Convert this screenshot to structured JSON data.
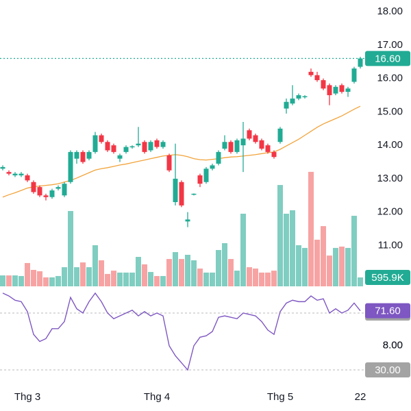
{
  "chart_data": {
    "type": "candlestick",
    "categories": [
      null,
      null,
      null,
      null,
      "Thg 3",
      null,
      null,
      null,
      null,
      null,
      null,
      null,
      null,
      null,
      null,
      null,
      null,
      null,
      null,
      null,
      null,
      null,
      null,
      null,
      null,
      "Thg 4",
      null,
      null,
      null,
      null,
      null,
      null,
      null,
      null,
      null,
      null,
      null,
      null,
      null,
      null,
      null,
      null,
      null,
      null,
      null,
      "Thg 5",
      null,
      null,
      null,
      null,
      null,
      null,
      null,
      null,
      null,
      null,
      null,
      null,
      "22"
    ],
    "open": [
      13.3,
      13.2,
      13.1,
      13.1,
      13.1,
      12.9,
      12.75,
      12.5,
      12.45,
      12.7,
      12.5,
      12.9,
      13.6,
      13.8,
      13.6,
      13.8,
      14.3,
      14.1,
      14.0,
      13.6,
      13.8,
      13.95,
      14.0,
      14.1,
      13.85,
      14.15,
      13.95,
      13.7,
      12.3,
      12.9,
      11.72,
      12.53,
      13.1,
      12.9,
      13.3,
      13.45,
      13.9,
      14.1,
      13.8,
      14.0,
      14.45,
      14.3,
      14.15,
      14.0,
      13.8,
      14.1,
      15.1,
      15.25,
      15.4,
      15.45,
      16.2,
      16.1,
      15.95,
      15.8,
      15.55,
      15.8,
      15.6,
      15.9,
      16.35
    ],
    "high": [
      13.4,
      13.25,
      13.2,
      13.2,
      13.15,
      12.95,
      12.8,
      12.55,
      12.7,
      12.8,
      12.9,
      13.85,
      13.85,
      13.85,
      13.85,
      14.4,
      14.35,
      14.15,
      14.05,
      13.75,
      14.0,
      14.0,
      14.55,
      14.15,
      14.15,
      14.2,
      14.15,
      13.75,
      14.05,
      12.95,
      12.0,
      12.56,
      13.15,
      13.35,
      13.45,
      13.85,
      14.3,
      14.15,
      14.2,
      14.7,
      14.5,
      14.35,
      14.2,
      14.05,
      13.85,
      14.55,
      15.4,
      15.8,
      15.55,
      15.5,
      16.3,
      16.2,
      16.0,
      15.85,
      15.8,
      15.85,
      15.75,
      16.35,
      16.65
    ],
    "low": [
      13.25,
      13.1,
      13.05,
      13.05,
      12.9,
      12.55,
      12.45,
      12.35,
      12.4,
      12.65,
      12.45,
      12.85,
      13.45,
      13.45,
      13.55,
      13.75,
      14.05,
      13.8,
      13.75,
      13.5,
      13.75,
      13.9,
      13.95,
      13.75,
      13.8,
      13.9,
      13.9,
      13.2,
      12.2,
      12.15,
      11.55,
      12.5,
      12.75,
      12.85,
      13.25,
      13.4,
      13.85,
      13.75,
      13.75,
      13.2,
      14.15,
      14.05,
      13.85,
      13.75,
      13.6,
      14.05,
      14.95,
      15.2,
      15.35,
      15.4,
      16.05,
      15.9,
      15.65,
      15.2,
      15.5,
      15.55,
      15.45,
      15.85,
      16.3
    ],
    "close": [
      13.35,
      13.15,
      13.15,
      13.15,
      12.95,
      12.6,
      12.5,
      12.45,
      12.65,
      12.75,
      12.85,
      13.8,
      13.8,
      13.5,
      13.8,
      14.3,
      14.1,
      13.85,
      13.8,
      13.7,
      13.95,
      13.97,
      14.05,
      13.8,
      14.1,
      13.95,
      14.1,
      13.25,
      13.0,
      12.2,
      11.78,
      12.55,
      12.85,
      13.3,
      13.4,
      13.8,
      14.1,
      13.8,
      14.15,
      14.2,
      14.2,
      14.1,
      13.9,
      13.8,
      13.65,
      14.5,
      15.3,
      15.4,
      15.5,
      15.47,
      16.1,
      15.95,
      15.7,
      15.5,
      15.75,
      15.6,
      15.7,
      16.3,
      16.6
    ],
    "up_color": "#22ab94",
    "down_color": "#f23645",
    "ylim": [
      6.6,
      18.35
    ],
    "yticks": [
      {
        "value": 18,
        "label": "18.00"
      },
      {
        "value": 17,
        "label": "17.00"
      },
      {
        "value": 16,
        "label": "16.00"
      },
      {
        "value": 15,
        "label": "15.00"
      },
      {
        "value": 14,
        "label": "14.00"
      },
      {
        "value": 13,
        "label": "13.00"
      },
      {
        "value": 12,
        "label": "12.00"
      },
      {
        "value": 11,
        "label": "11.00"
      },
      {
        "value": 8,
        "label": "8.00"
      }
    ],
    "last_price": {
      "value": 16.6,
      "label": "16.60"
    },
    "ma": {
      "color": "#f2a33a",
      "values": [
        12.45,
        12.52,
        12.58,
        12.65,
        12.72,
        12.76,
        12.78,
        12.8,
        12.82,
        12.85,
        12.9,
        12.95,
        13.02,
        13.1,
        13.18,
        13.26,
        13.3,
        13.33,
        13.37,
        13.41,
        13.44,
        13.48,
        13.52,
        13.56,
        13.6,
        13.64,
        13.68,
        13.7,
        13.72,
        13.7,
        13.66,
        13.6,
        13.57,
        13.56,
        13.58,
        13.6,
        13.63,
        13.65,
        13.66,
        13.68,
        13.7,
        13.72,
        13.75,
        13.78,
        13.8,
        13.88,
        13.98,
        14.08,
        14.18,
        14.3,
        14.42,
        14.54,
        14.64,
        14.72,
        14.8,
        14.88,
        14.98,
        15.08,
        15.17
      ]
    },
    "volume": {
      "up_color": "#80cdc1",
      "down_color": "#f7a3a3",
      "ylim": [
        0,
        19160000
      ],
      "values": [
        730000,
        730000,
        730000,
        690000,
        1560000,
        1100000,
        1010000,
        600000,
        600000,
        690000,
        1280000,
        5040000,
        1280000,
        1600000,
        1280000,
        2750000,
        1740000,
        830000,
        1050000,
        920000,
        920000,
        920000,
        1970000,
        1470000,
        960000,
        690000,
        690000,
        1830000,
        2290000,
        1830000,
        2110000,
        1740000,
        1190000,
        920000,
        920000,
        2430000,
        2890000,
        1830000,
        1050000,
        4860000,
        1280000,
        1190000,
        920000,
        920000,
        1050000,
        6780000,
        4860000,
        5090000,
        2750000,
        2570000,
        7660000,
        3120000,
        4030000,
        2060000,
        2570000,
        2660000,
        2570000,
        4720000,
        595900
      ],
      "value_labels": [
        null,
        null,
        null,
        null,
        null,
        null,
        null,
        null,
        null,
        null,
        null,
        null,
        null,
        null,
        null,
        null,
        null,
        null,
        null,
        null,
        null,
        null,
        null,
        null,
        null,
        null,
        null,
        null,
        null,
        null,
        null,
        null,
        null,
        null,
        null,
        null,
        null,
        null,
        null,
        null,
        null,
        null,
        null,
        null,
        null,
        null,
        null,
        null,
        null,
        null,
        null,
        null,
        null,
        null,
        null,
        null,
        null,
        null,
        "595.9K"
      ],
      "label_color": "#22ab94"
    },
    "rsi": {
      "color": "#7e57c2",
      "ylim": [
        20.4,
        85.4
      ],
      "yticks": [
        {
          "value": 70,
          "label": "70.00"
        },
        {
          "value": 30,
          "label": "30.00"
        }
      ],
      "values": [
        84,
        82,
        79,
        78,
        71,
        55,
        50,
        52,
        59,
        59,
        64,
        81,
        73,
        70,
        78,
        84,
        78,
        70,
        66,
        68,
        70,
        72,
        68,
        71,
        68,
        70,
        68,
        47,
        40,
        35,
        30,
        47,
        53,
        54,
        57,
        67,
        68,
        67,
        66,
        70,
        69,
        68,
        64,
        58,
        55,
        71,
        77,
        79,
        78,
        78,
        82,
        79,
        80,
        70,
        73,
        70,
        72,
        77,
        71.6
      ],
      "value_labels": [
        null,
        null,
        null,
        null,
        null,
        null,
        null,
        null,
        null,
        null,
        null,
        null,
        null,
        null,
        null,
        null,
        null,
        null,
        null,
        null,
        null,
        null,
        null,
        null,
        null,
        null,
        null,
        null,
        null,
        null,
        null,
        null,
        null,
        null,
        null,
        null,
        null,
        null,
        null,
        null,
        null,
        null,
        null,
        null,
        null,
        null,
        null,
        null,
        null,
        null,
        null,
        null,
        null,
        null,
        null,
        null,
        null,
        null,
        "71.60"
      ]
    }
  }
}
